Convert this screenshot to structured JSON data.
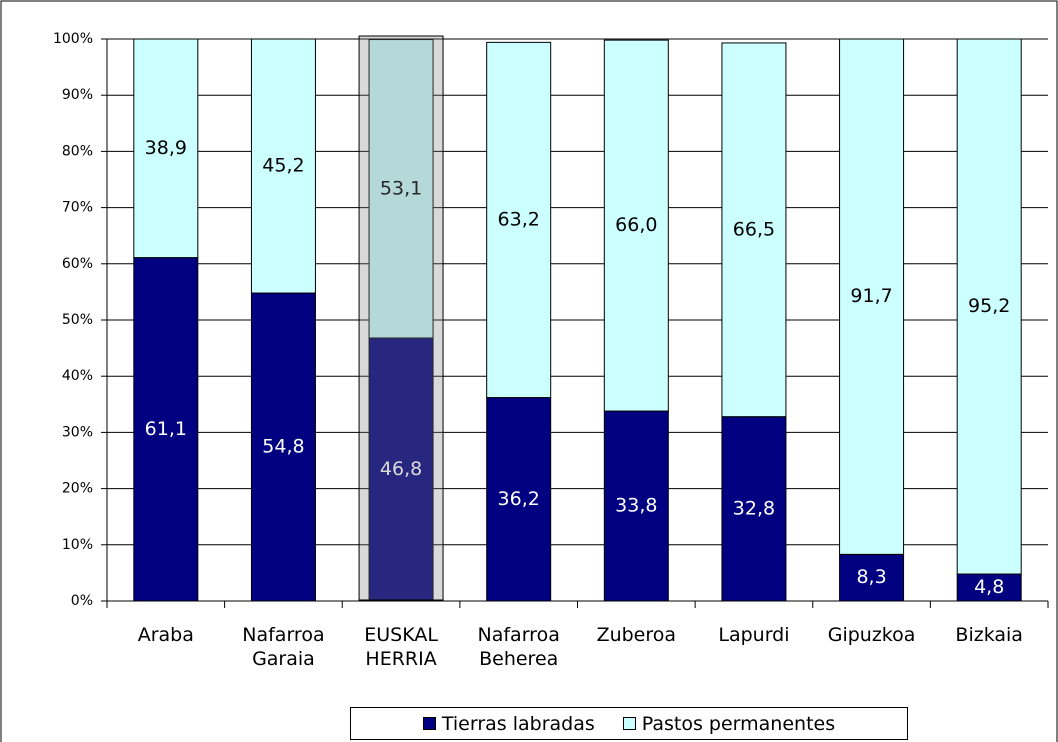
{
  "chart_data": {
    "type": "stacked_bar",
    "categories": [
      "Araba",
      "Nafarroa Garaia",
      "EUSKAL HERRIA",
      "Nafarroa Beherea",
      "Zuberoa",
      "Lapurdi",
      "Gipuzkoa",
      "Bizkaia"
    ],
    "series": [
      {
        "name": "Tierras labradas",
        "color": "#000080",
        "label_color": "#ffffff",
        "values": [
          61.1,
          54.8,
          46.8,
          36.2,
          33.8,
          32.8,
          8.3,
          4.8
        ],
        "value_labels": [
          "61,1",
          "54,8",
          "46,8",
          "36,2",
          "33,8",
          "32,8",
          "8,3",
          "4,8"
        ]
      },
      {
        "name": "Pastos permanentes",
        "color": "#ccffff",
        "label_color": "#000000",
        "values": [
          38.9,
          45.2,
          53.1,
          63.2,
          66.0,
          66.5,
          91.7,
          95.2
        ],
        "value_labels": [
          "38,9",
          "45,2",
          "53,1",
          "63,2",
          "66,0",
          "66,5",
          "91,7",
          "95,2"
        ]
      }
    ],
    "ylim": [
      0,
      100
    ],
    "yticks": [
      {
        "value": 0,
        "label": "0%"
      },
      {
        "value": 10,
        "label": "10%"
      },
      {
        "value": 20,
        "label": "20%"
      },
      {
        "value": 30,
        "label": "30%"
      },
      {
        "value": 40,
        "label": "40%"
      },
      {
        "value": 50,
        "label": "50%"
      },
      {
        "value": 60,
        "label": "60%"
      },
      {
        "value": 70,
        "label": "70%"
      },
      {
        "value": 80,
        "label": "80%"
      },
      {
        "value": 90,
        "label": "90%"
      },
      {
        "value": 100,
        "label": "100%"
      }
    ],
    "grid": true,
    "legend": "bottom"
  }
}
